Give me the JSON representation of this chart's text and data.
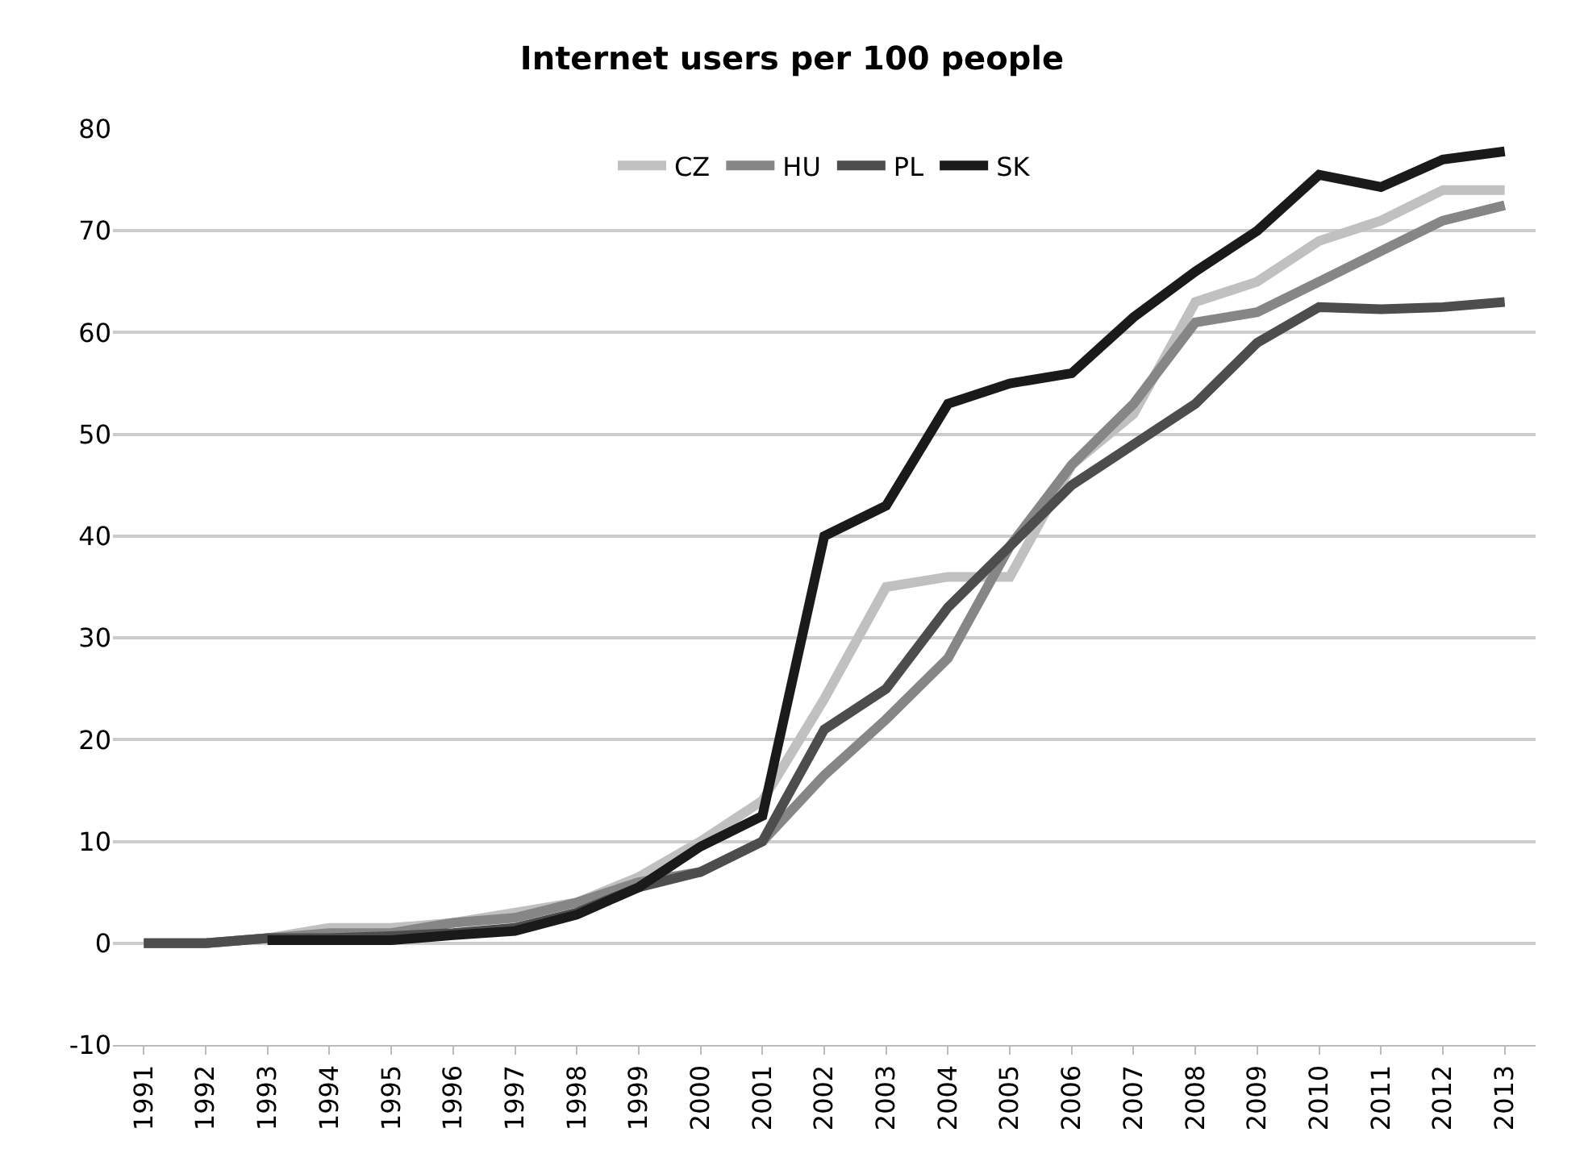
{
  "chart_data": {
    "type": "line",
    "title": "Internet users per 100 people",
    "categories": [
      "1991",
      "1992",
      "1993",
      "1994",
      "1995",
      "1996",
      "1997",
      "1998",
      "1999",
      "2000",
      "2001",
      "2002",
      "2003",
      "2004",
      "2005",
      "2006",
      "2007",
      "2008",
      "2009",
      "2010",
      "2011",
      "2012",
      "2013"
    ],
    "series": [
      {
        "name": "CZ",
        "color": "#c0c0c0",
        "values": [
          0,
          0,
          0.5,
          1.5,
          1.5,
          2,
          3,
          4,
          6.5,
          10,
          14,
          24,
          35,
          36,
          36,
          47,
          52,
          63,
          65,
          69,
          71,
          74,
          74
        ]
      },
      {
        "name": "HU",
        "color": "#868686",
        "values": [
          0,
          0,
          0.5,
          1,
          1,
          2,
          2.5,
          4,
          6,
          7,
          10,
          16.5,
          22,
          28,
          39,
          47,
          53,
          61,
          62,
          65,
          68,
          71,
          72.5
        ]
      },
      {
        "name": "PL",
        "color": "#4d4d4d",
        "values": [
          0,
          0,
          0.5,
          0.5,
          0.7,
          1,
          1.5,
          3,
          5.5,
          7,
          10,
          21,
          25,
          33,
          39,
          45,
          49,
          53,
          59,
          62.5,
          62.3,
          62.5,
          63
        ]
      },
      {
        "name": "SK",
        "color": "#1a1a1a",
        "values": [
          null,
          null,
          0.3,
          0.3,
          0.3,
          0.8,
          1.2,
          2.8,
          5.5,
          9.5,
          12.5,
          40,
          43,
          53,
          55,
          56,
          61.5,
          66,
          70,
          75.5,
          74.3,
          77,
          77.8
        ]
      }
    ],
    "ylim": [
      -10,
      80
    ],
    "yticks": [
      -10,
      0,
      10,
      20,
      30,
      40,
      50,
      60,
      70,
      80
    ],
    "grid": "y",
    "legend": "top",
    "marker": "none",
    "line_style": "solid"
  }
}
